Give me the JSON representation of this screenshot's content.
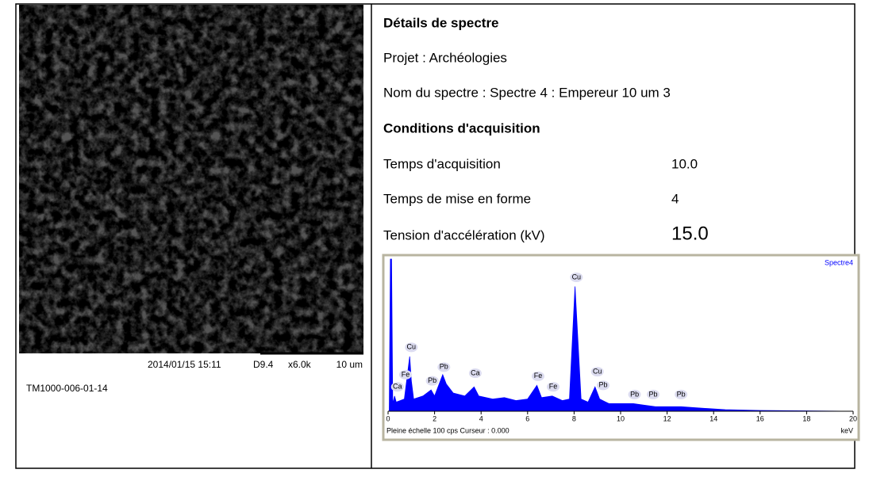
{
  "image_caption": {
    "datetime": "2014/01/15  15:11",
    "detector": "D9.4",
    "magnification": "x6.0k",
    "scale": "10 um",
    "instrument": "TM1000-006-01-14"
  },
  "details": {
    "title": "Détails de spectre",
    "project": "Projet : Archéologies",
    "spectrum_name": "Nom du spectre : Spectre 4 : Empereur 10 um 3",
    "conditions_title": "Conditions d'acquisition",
    "rows": [
      [
        "Temps d'acquisition",
        "10.0"
      ],
      [
        "Temps de mise en forme",
        "4"
      ],
      [
        "Tension d'accélération (kV)",
        "15.0"
      ]
    ]
  },
  "chart_data": {
    "type": "area",
    "legend": "Spectre4",
    "x_unit": "keV",
    "footer": "Pleine échelle 100 cps  Curseur : 0.000",
    "color": "#0000ff",
    "xlim": [
      0,
      20
    ],
    "ylim": [
      0,
      100
    ],
    "xticks": [
      0,
      2,
      4,
      6,
      8,
      10,
      12,
      14,
      16,
      18,
      20
    ],
    "x": [
      0.05,
      0.1,
      0.15,
      0.2,
      0.28,
      0.35,
      0.7,
      0.93,
      1.0,
      1.1,
      1.5,
      1.85,
      2.0,
      2.35,
      2.5,
      2.8,
      3.3,
      3.7,
      3.9,
      4.5,
      5.0,
      5.5,
      6.0,
      6.4,
      6.6,
      7.06,
      7.5,
      7.8,
      8.04,
      8.3,
      8.6,
      8.9,
      9.1,
      9.5,
      10.55,
      11.0,
      11.5,
      12.6,
      13.5,
      14.5,
      16,
      20
    ],
    "values": [
      0,
      100,
      100,
      5,
      10,
      6,
      8,
      36,
      20,
      8,
      10,
      14,
      10,
      24,
      18,
      12,
      10,
      16,
      10,
      8,
      9,
      7,
      8,
      17,
      9,
      10,
      7,
      8,
      82,
      8,
      6,
      16,
      8,
      5,
      5,
      4,
      3,
      3,
      2,
      1,
      0.5,
      0
    ],
    "annotations": [
      {
        "text": "Ca",
        "x": 0.4,
        "y": 16
      },
      {
        "text": "Cu",
        "x": 1.0,
        "y": 42
      },
      {
        "text": "Fe",
        "x": 0.75,
        "y": 24
      },
      {
        "text": "Pb",
        "x": 1.9,
        "y": 20
      },
      {
        "text": "Pb",
        "x": 2.4,
        "y": 29
      },
      {
        "text": "Ca",
        "x": 3.75,
        "y": 25
      },
      {
        "text": "Fe",
        "x": 6.45,
        "y": 23
      },
      {
        "text": "Fe",
        "x": 7.1,
        "y": 16
      },
      {
        "text": "Cu",
        "x": 8.1,
        "y": 88
      },
      {
        "text": "Cu",
        "x": 9.0,
        "y": 26
      },
      {
        "text": "Pb",
        "x": 9.25,
        "y": 17
      },
      {
        "text": "Pb",
        "x": 10.6,
        "y": 11
      },
      {
        "text": "Pb",
        "x": 11.4,
        "y": 11
      },
      {
        "text": "Pb",
        "x": 12.6,
        "y": 11
      }
    ]
  }
}
